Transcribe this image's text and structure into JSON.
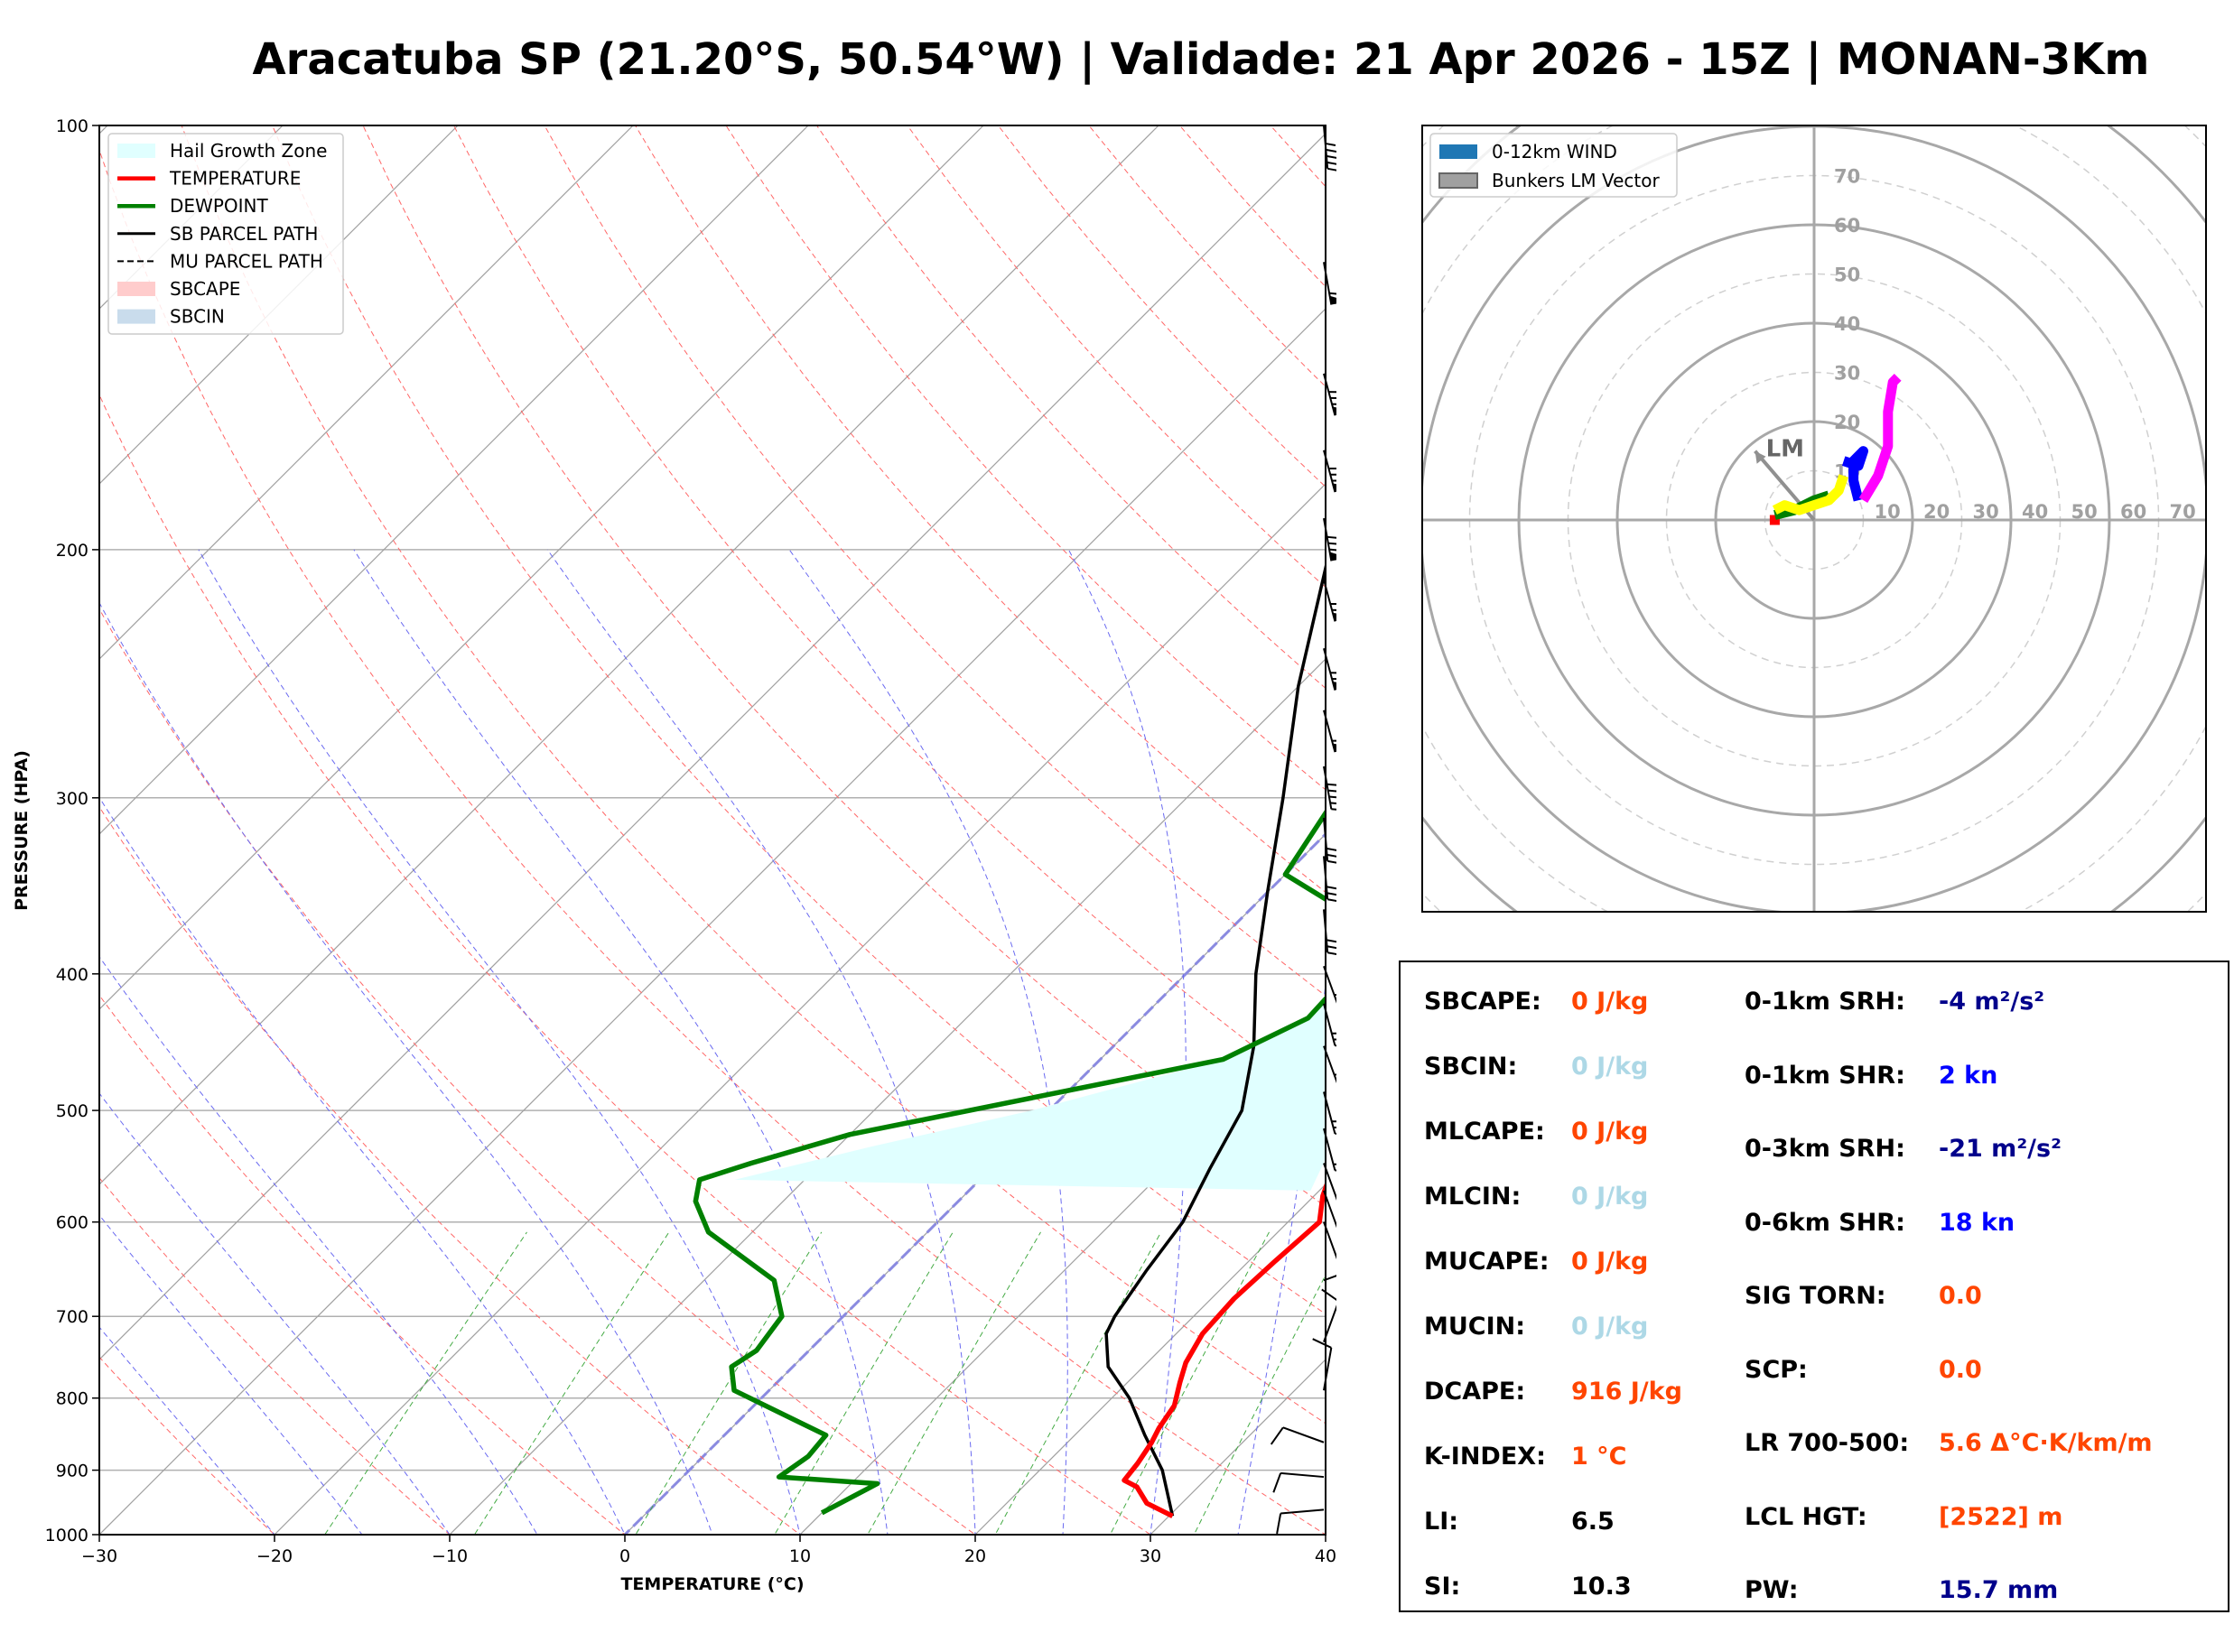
{
  "title": "Aracatuba SP (21.20°S, 50.54°W) | Validade: 21 Apr 2026 - 15Z | MONAN-3Km",
  "chart_data": [
    {
      "type": "line",
      "name": "skew-t",
      "xlabel": "TEMPERATURE (°C)",
      "ylabel": "PRESSURE (HPA)",
      "xlim": [
        -30,
        40
      ],
      "ylim": [
        1000,
        100
      ],
      "y_scale": "log",
      "x_ticks": [
        -30,
        -20,
        -10,
        0,
        10,
        20,
        30,
        40
      ],
      "x_tick_labels": [
        "−30",
        "−20",
        "−10",
        "0",
        "10",
        "20",
        "30",
        "40"
      ],
      "y_ticks": [
        1000,
        900,
        800,
        700,
        600,
        500,
        400,
        300,
        200,
        100
      ],
      "grid": true,
      "legend_position": "top-left",
      "legend": [
        {
          "label": "Hail Growth Zone",
          "color": "#e0ffff",
          "kind": "patch"
        },
        {
          "label": "TEMPERATURE",
          "color": "#ff0000",
          "kind": "line"
        },
        {
          "label": "DEWPOINT",
          "color": "#008000",
          "kind": "line"
        },
        {
          "label": "SB PARCEL PATH",
          "color": "#000000",
          "kind": "line"
        },
        {
          "label": "MU PARCEL PATH",
          "color": "#000000",
          "kind": "dashed"
        },
        {
          "label": "SBCAPE",
          "color": "#ffcccc",
          "kind": "patch"
        },
        {
          "label": "SBCIN",
          "color": "#c9dcec",
          "kind": "patch"
        }
      ],
      "temperature": [
        [
          970,
          30.2
        ],
        [
          950,
          28
        ],
        [
          925,
          26.5
        ],
        [
          915,
          25.4
        ],
        [
          890,
          25.2
        ],
        [
          860,
          24.8
        ],
        [
          840,
          24.4
        ],
        [
          810,
          24
        ],
        [
          780,
          23
        ],
        [
          755,
          22.2
        ],
        [
          720,
          21.5
        ],
        [
          680,
          21.3
        ],
        [
          640,
          21.5
        ],
        [
          600,
          21.8
        ],
        [
          575,
          20.5
        ],
        [
          550,
          19.5
        ],
        [
          500,
          17
        ],
        [
          450,
          15.5
        ],
        [
          415,
          14
        ],
        [
          380,
          13.5
        ],
        [
          350,
          12.5
        ],
        [
          320,
          11.5
        ],
        [
          290,
          10
        ],
        [
          260,
          8
        ],
        [
          230,
          5.5
        ],
        [
          210,
          3
        ],
        [
          190,
          1.2
        ],
        [
          170,
          -0.3
        ],
        [
          150,
          -1.5
        ],
        [
          130,
          -3
        ],
        [
          115,
          0
        ],
        [
          100,
          5
        ]
      ],
      "dewpoint": [
        [
          965,
          10
        ],
        [
          920,
          11.5
        ],
        [
          910,
          5.5
        ],
        [
          880,
          6
        ],
        [
          850,
          5.8
        ],
        [
          790,
          -2
        ],
        [
          760,
          -3.5
        ],
        [
          740,
          -3
        ],
        [
          700,
          -3.5
        ],
        [
          660,
          -6
        ],
        [
          610,
          -12.5
        ],
        [
          580,
          -15
        ],
        [
          560,
          -16
        ],
        [
          545,
          -14
        ],
        [
          520,
          -10
        ],
        [
          460,
          7
        ],
        [
          430,
          9.5
        ],
        [
          400,
          9.3
        ],
        [
          375,
          9
        ],
        [
          340,
          0
        ],
        [
          300,
          -1.5
        ],
        [
          270,
          -5
        ],
        [
          245,
          -8
        ],
        [
          225,
          -6
        ],
        [
          200,
          -7
        ],
        [
          170,
          -11
        ],
        [
          155,
          -15
        ],
        [
          150,
          -16
        ],
        [
          135,
          -11
        ],
        [
          115,
          -6
        ],
        [
          100,
          -6
        ]
      ],
      "sb_parcel": [
        [
          970,
          30.2
        ],
        [
          900,
          27
        ],
        [
          850,
          24
        ],
        [
          800,
          21
        ],
        [
          760,
          18
        ],
        [
          720,
          16
        ],
        [
          700,
          15.5
        ],
        [
          650,
          14.7
        ],
        [
          600,
          14
        ],
        [
          550,
          12.5
        ],
        [
          500,
          11
        ],
        [
          450,
          8
        ],
        [
          400,
          4
        ],
        [
          350,
          0
        ],
        [
          300,
          -4.5
        ],
        [
          250,
          -10
        ],
        [
          200,
          -16
        ],
        [
          170,
          -21
        ],
        [
          150,
          -25
        ],
        [
          130,
          -28
        ],
        [
          110,
          -30
        ],
        [
          100,
          -30
        ]
      ],
      "hail_growth_zone": {
        "p_top": 380,
        "p_bottom": 560,
        "t_upper_bound": [
          [
            380,
            13.3
          ],
          [
            420,
            14.7
          ],
          [
            460,
            16
          ],
          [
            500,
            17.3
          ],
          [
            540,
            18.5
          ],
          [
            570,
            19.5
          ]
        ],
        "t_lower_bound": [
          [
            380,
            9
          ],
          [
            400,
            9.3
          ],
          [
            430,
            9.5
          ],
          [
            460,
            7
          ],
          [
            500,
            -1
          ],
          [
            530,
            -8
          ],
          [
            560,
            -14
          ]
        ]
      },
      "wind_barbs": [
        [
          100,
          175,
          45
        ],
        [
          125,
          170,
          55
        ],
        [
          150,
          165,
          75
        ],
        [
          170,
          165,
          80
        ],
        [
          190,
          170,
          80
        ],
        [
          210,
          165,
          70
        ],
        [
          235,
          165,
          70
        ],
        [
          260,
          165,
          55
        ],
        [
          285,
          170,
          45
        ],
        [
          310,
          175,
          30
        ],
        [
          330,
          175,
          30
        ],
        [
          360,
          175,
          25
        ],
        [
          395,
          160,
          25
        ],
        [
          420,
          165,
          30
        ],
        [
          450,
          160,
          25
        ],
        [
          485,
          165,
          25
        ],
        [
          515,
          165,
          20
        ],
        [
          545,
          160,
          20
        ],
        [
          570,
          160,
          15
        ],
        [
          600,
          160,
          10
        ],
        [
          660,
          70,
          10
        ],
        [
          730,
          20,
          10
        ],
        [
          790,
          10,
          10
        ],
        [
          860,
          290,
          10
        ],
        [
          910,
          275,
          10
        ],
        [
          960,
          265,
          10
        ]
      ]
    },
    {
      "type": "line",
      "name": "hodograph",
      "ring_labels": [
        "10",
        "20",
        "30",
        "40",
        "50",
        "60",
        "70"
      ],
      "legend_position": "top-left",
      "legend": [
        {
          "label": "0-12km WIND",
          "color": "#1f77b4"
        },
        {
          "label": "Bunkers LM Vector",
          "color": "#a0a0a0"
        }
      ],
      "lm_label": "LM",
      "lm_vector": [
        -12,
        14
      ],
      "series": [
        {
          "name": "",
          "color": "#ff0000",
          "points": [
            [
              -8,
              1
            ],
            [
              -8,
              -1
            ]
          ]
        },
        {
          "name": "",
          "color": "#008000",
          "points": [
            [
              -8,
              1
            ],
            [
              -4,
              2
            ],
            [
              0,
              4
            ],
            [
              3,
              5
            ]
          ]
        },
        {
          "name": "",
          "color": "#ffff00",
          "points": [
            [
              -8,
              2
            ],
            [
              -6,
              3
            ],
            [
              -3,
              2
            ],
            [
              0,
              3
            ],
            [
              3,
              4
            ],
            [
              5,
              6
            ],
            [
              6,
              9
            ]
          ]
        },
        {
          "name": "",
          "color": "#0000ff",
          "points": [
            [
              6,
              12
            ],
            [
              9,
              11
            ],
            [
              10,
              14
            ],
            [
              8,
              12
            ],
            [
              8,
              8
            ],
            [
              9,
              4
            ]
          ]
        },
        {
          "name": "",
          "color": "#ff00ff",
          "points": [
            [
              10,
              4
            ],
            [
              13,
              9
            ],
            [
              15,
              15
            ],
            [
              15,
              22
            ],
            [
              16,
              28
            ],
            [
              17,
              29
            ]
          ]
        }
      ]
    }
  ],
  "params": {
    "left": [
      {
        "label": "SBCAPE:",
        "value": "0 J/kg",
        "color": "#ff4500"
      },
      {
        "label": "SBCIN:",
        "value": "0 J/kg",
        "color": "#add8e6"
      },
      {
        "label": "MLCAPE:",
        "value": "0 J/kg",
        "color": "#ff4500"
      },
      {
        "label": "MLCIN:",
        "value": "0 J/kg",
        "color": "#add8e6"
      },
      {
        "label": "MUCAPE:",
        "value": "0 J/kg",
        "color": "#ff4500"
      },
      {
        "label": "MUCIN:",
        "value": "0 J/kg",
        "color": "#add8e6"
      },
      {
        "label": "DCAPE:",
        "value": "916 J/kg",
        "color": "#ff4500"
      },
      {
        "label": "K-INDEX:",
        "value": "1 °C",
        "color": "#ff4500"
      },
      {
        "label": "LI:",
        "value": "6.5",
        "color": "#000000"
      },
      {
        "label": "SI:",
        "value": "10.3",
        "color": "#000000"
      }
    ],
    "right": [
      {
        "label": "0-1km SRH:",
        "value": "-4 m²/s²",
        "color": "#00008b"
      },
      {
        "label": "0-1km SHR:",
        "value": "2 kn",
        "color": "#0000ff"
      },
      {
        "label": "0-3km SRH:",
        "value": "-21 m²/s²",
        "color": "#00008b"
      },
      {
        "label": "0-6km SHR:",
        "value": "18 kn",
        "color": "#0000ff"
      },
      {
        "label": "SIG TORN:",
        "value": "0.0",
        "color": "#ff4500"
      },
      {
        "label": "SCP:",
        "value": "0.0",
        "color": "#ff4500"
      },
      {
        "label": "LR 700-500:",
        "value": "5.6 Δ°C·K/km/m",
        "color": "#ff4500"
      },
      {
        "label": "LCL HGT:",
        "value": "[2522] m",
        "color": "#ff4500"
      },
      {
        "label": "PW:",
        "value": "15.7 mm",
        "color": "#00008b"
      }
    ]
  }
}
